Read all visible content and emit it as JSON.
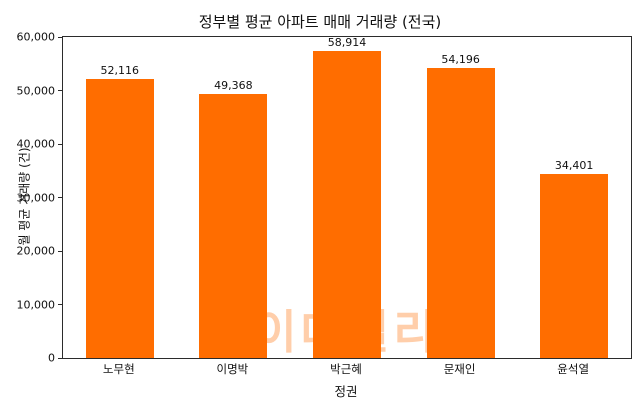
{
  "chart_data": {
    "type": "bar",
    "title": "정부별 평균 아파트 매매 거래량 (전국)",
    "xlabel": "정권",
    "ylabel": "월 평균 거래량 (건)",
    "categories": [
      "노무현",
      "이명박",
      "박근혜",
      "문재인",
      "윤석열"
    ],
    "values": [
      52116,
      49368,
      58914,
      54196,
      34401
    ],
    "value_labels": [
      "52,116",
      "49,368",
      "58,914",
      "54,196",
      "34,401"
    ],
    "ylim": [
      0,
      60000
    ],
    "ytick_step": 10000,
    "ytick_labels": [
      "0",
      "10,000",
      "20,000",
      "30,000",
      "40,000",
      "50,000",
      "60,000"
    ],
    "bar_color": "#ff6d00",
    "grid": false,
    "legend": null,
    "watermark": "이데일리"
  }
}
